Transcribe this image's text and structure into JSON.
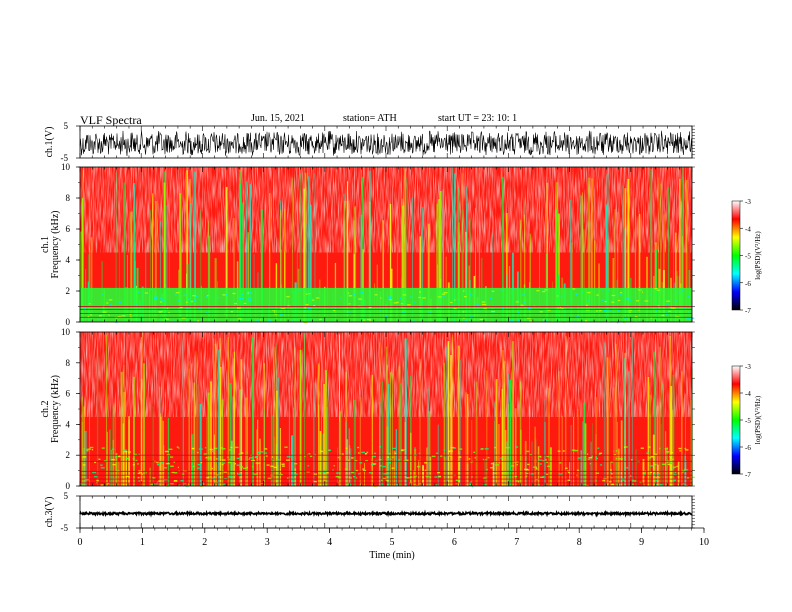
{
  "header": {
    "title": "VLF  Spectra",
    "date": "Jun. 15, 2021",
    "station": "station= ATH",
    "start": "start  UT  =    23: 10: 1"
  },
  "colors": {
    "gradient": [
      "#000000",
      "#0000ff",
      "#00ffff",
      "#00ff00",
      "#ffff00",
      "#ff0000",
      "#ffffff"
    ]
  },
  "chart_data": [
    {
      "type": "line",
      "name": "ch1-waveform",
      "ylabel": "ch.1(V)",
      "ylim": [
        -5,
        5
      ],
      "yticks": [
        "5",
        "-5"
      ],
      "xlim": [
        0,
        10
      ]
    },
    {
      "type": "heatmap",
      "name": "ch1-spectrogram",
      "ylabel_lines": [
        "ch.1",
        "Frequency  (kHz)"
      ],
      "ylim": [
        0,
        10
      ],
      "yticks": [
        "0",
        "2",
        "4",
        "6",
        "8",
        "10"
      ],
      "xlim": [
        0,
        10
      ],
      "colorbar": {
        "label": "log(PSD)(V²/Hz)",
        "range": [
          -7,
          -3
        ],
        "ticks": [
          "-3",
          "-4",
          "-5",
          "-6",
          "-7"
        ]
      }
    },
    {
      "type": "heatmap",
      "name": "ch2-spectrogram",
      "ylabel_lines": [
        "ch.2",
        "Frequency  (kHz)"
      ],
      "ylim": [
        0,
        10
      ],
      "yticks": [
        "0",
        "2",
        "4",
        "6",
        "8",
        "10"
      ],
      "xlim": [
        0,
        10
      ],
      "colorbar": {
        "label": "log(PSD)(V²/Hz)",
        "range": [
          -7,
          -3
        ],
        "ticks": [
          "-3",
          "-4",
          "-5",
          "-6",
          "-7"
        ]
      }
    },
    {
      "type": "line",
      "name": "ch3-waveform",
      "ylabel": "ch.3(V)",
      "ylim": [
        -5,
        5
      ],
      "yticks": [
        "5",
        "-5"
      ],
      "xlim": [
        0,
        10
      ],
      "xlabel": "Time  (min)",
      "xticks": [
        "0",
        "1",
        "2",
        "3",
        "4",
        "5",
        "6",
        "7",
        "8",
        "9",
        "10"
      ]
    }
  ]
}
